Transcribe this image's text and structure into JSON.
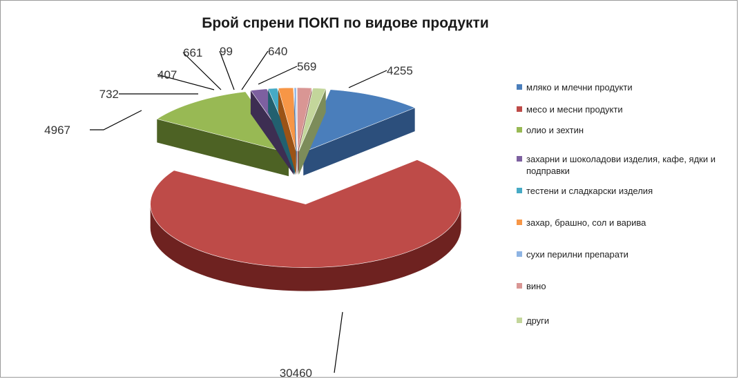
{
  "chart_data": {
    "type": "pie",
    "title": "Брой спрени ПОКП по видове продукти",
    "categories": [
      "мляко и млечни продукти",
      "месо и месни продукти",
      "олио и зехтин",
      "захарни и шоколадови изделия, кафе, ядки и подправки",
      "тестени и сладкарски изделия",
      "захар, брашно, сол и варива",
      "сухи перилни препарати",
      "вино",
      "други"
    ],
    "values": [
      4255,
      30460,
      4967,
      732,
      407,
      661,
      99,
      640,
      569
    ],
    "colors": [
      "#4a7ebb",
      "#be4b48",
      "#98b954",
      "#7d60a0",
      "#46aac5",
      "#f79646",
      "#8eb4e3",
      "#d99694",
      "#c3d69b"
    ],
    "sideColors": [
      "#2c4f7c",
      "#6e2220",
      "#4d6224",
      "#3d2e52",
      "#22606f",
      "#9b5316",
      "#4d6f99",
      "#8b4c4a",
      "#7c8c5a"
    ],
    "legend_position": "right",
    "style": "3d-exploded"
  }
}
